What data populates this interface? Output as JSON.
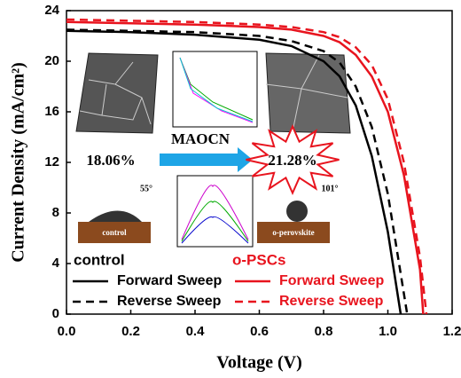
{
  "chart_data": {
    "type": "line",
    "xlabel": "Voltage (V)",
    "ylabel": "Current Density (mA/cm²)",
    "xlim": [
      0,
      1.2
    ],
    "ylim": [
      0,
      24
    ],
    "xticks": [
      {
        "value": 0,
        "label": "0.0"
      },
      0.2,
      0.4,
      0.6,
      0.8,
      {
        "value": 1,
        "label": "1.0"
      },
      1.2
    ],
    "yticks": [
      0,
      4,
      8,
      12,
      16,
      20,
      24
    ],
    "legend_groups": [
      "control",
      "o-PSCs"
    ],
    "series": [
      {
        "name": "Forward Sweep",
        "color": "#000000",
        "dashed": false,
        "x": [
          0,
          0.2,
          0.4,
          0.6,
          0.7,
          0.8,
          0.85,
          0.9,
          0.95,
          1.0,
          1.04
        ],
        "values": [
          22.4,
          22.3,
          22.1,
          21.7,
          21.2,
          20.0,
          18.8,
          16.5,
          12.5,
          6.5,
          0
        ]
      },
      {
        "name": "Reverse Sweep",
        "color": "#000000",
        "dashed": true,
        "x": [
          0,
          0.2,
          0.4,
          0.6,
          0.7,
          0.8,
          0.85,
          0.9,
          0.95,
          1.0,
          1.06
        ],
        "values": [
          22.5,
          22.4,
          22.3,
          22.0,
          21.6,
          20.8,
          19.9,
          18.0,
          14.8,
          9.5,
          0
        ]
      },
      {
        "name": "Forward Sweep",
        "color": "#e8141e",
        "dashed": false,
        "x": [
          0,
          0.2,
          0.4,
          0.6,
          0.7,
          0.8,
          0.85,
          0.9,
          0.95,
          1.0,
          1.05,
          1.1,
          1.11
        ],
        "values": [
          23.1,
          23.0,
          22.9,
          22.7,
          22.5,
          22.0,
          21.5,
          20.5,
          18.8,
          16.0,
          11.0,
          3.5,
          0
        ]
      },
      {
        "name": "Reverse Sweep",
        "color": "#e8141e",
        "dashed": true,
        "x": [
          0,
          0.2,
          0.4,
          0.6,
          0.7,
          0.8,
          0.85,
          0.9,
          0.95,
          1.0,
          1.05,
          1.1,
          1.12
        ],
        "values": [
          23.3,
          23.2,
          23.1,
          22.9,
          22.7,
          22.3,
          21.9,
          21.1,
          19.7,
          17.0,
          12.0,
          4.5,
          0
        ]
      }
    ],
    "annotations": [
      "18.06%",
      "MAOCN",
      "21.28%",
      "55°",
      "101°",
      "control",
      "o-perovskite"
    ]
  }
}
